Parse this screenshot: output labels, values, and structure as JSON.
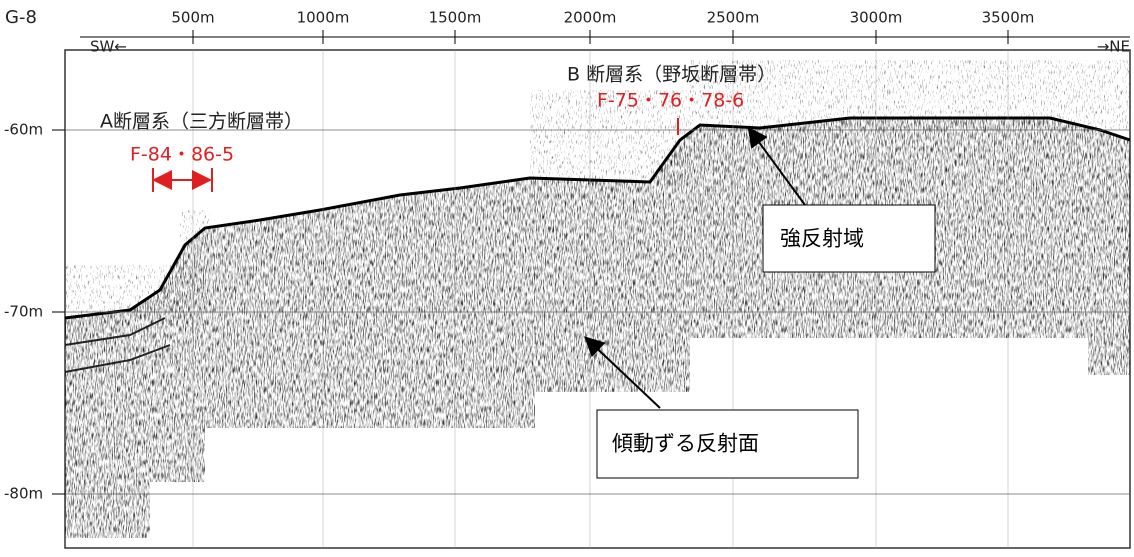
{
  "profile_id": "G-8",
  "distance_ticks": [
    "500m",
    "1000m",
    "1500m",
    "2000m",
    "2500m",
    "3000m",
    "3500m"
  ],
  "depth_ticks": [
    "-60m",
    "-70m",
    "-80m"
  ],
  "direction_left": "SW←",
  "direction_right": "→NE",
  "fault_a": {
    "name": "A断層系（三方断層帯）",
    "faults": "F-84・86-5"
  },
  "fault_b": {
    "name": "B 断層系（野坂断層帯）",
    "faults": "F-75・76・78-6"
  },
  "callouts": [
    "強反射域",
    "傾動ずる反射面"
  ]
}
